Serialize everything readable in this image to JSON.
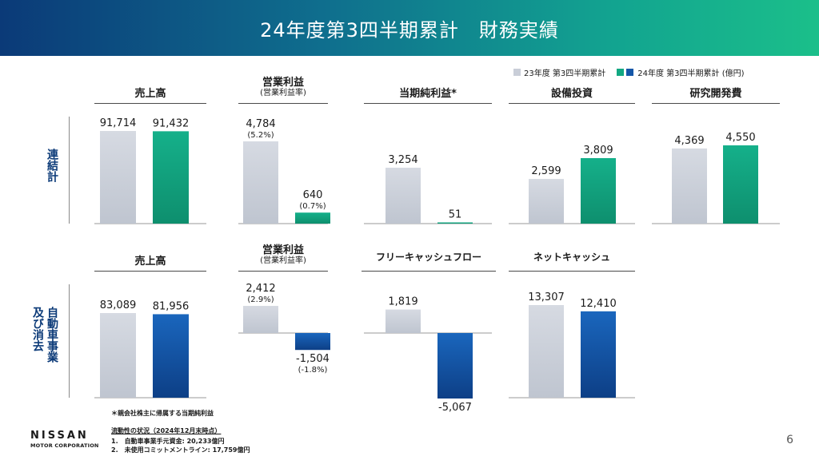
{
  "title": "24年度第3四半期累計　財務実績",
  "legend": [
    {
      "label": "23年度 第3四半期累計",
      "color": "#c9ced8"
    },
    {
      "label": "24年度 第3四半期累計 (億円)",
      "color_a": "#12a882",
      "color_b": "#1557a8"
    }
  ],
  "row_labels": {
    "consolidated": "連結計",
    "auto": "自動車事業\n及び消去"
  },
  "panel_titles": {
    "c_sales": {
      "title": "売上高",
      "sub": ""
    },
    "c_op": {
      "title": "営業利益",
      "sub": "(営業利益率)"
    },
    "c_net": {
      "title": "当期純利益*",
      "sub": ""
    },
    "c_capex": {
      "title": "設備投資",
      "sub": ""
    },
    "c_rd": {
      "title": "研究開発費",
      "sub": ""
    },
    "a_sales": {
      "title": "売上高",
      "sub": ""
    },
    "a_op": {
      "title": "営業利益",
      "sub": "(営業利益率)"
    },
    "a_fcf": {
      "title": "フリーキャッシュフロー",
      "sub": ""
    },
    "a_cash": {
      "title": "ネットキャッシュ",
      "sub": ""
    }
  },
  "chart_data": [
    {
      "id": "c_sales",
      "type": "bar",
      "categories": [
        "23年度 第3四半期累計",
        "24年度 第3四半期累計"
      ],
      "values": [
        91714,
        91432
      ],
      "labels": [
        "91,714",
        "91,432"
      ],
      "sub_labels": [
        "",
        ""
      ]
    },
    {
      "id": "c_op",
      "type": "bar",
      "categories": [
        "23年度 第3四半期累計",
        "24年度 第3四半期累計"
      ],
      "values": [
        4784,
        640
      ],
      "labels": [
        "4,784",
        "640"
      ],
      "sub_labels": [
        "(5.2%)",
        "(0.7%)"
      ]
    },
    {
      "id": "c_net",
      "type": "bar",
      "categories": [
        "23年度 第3四半期累計",
        "24年度 第3四半期累計"
      ],
      "values": [
        3254,
        51
      ],
      "labels": [
        "3,254",
        "51"
      ],
      "sub_labels": [
        "",
        ""
      ]
    },
    {
      "id": "c_capex",
      "type": "bar",
      "categories": [
        "23年度 第3四半期累計",
        "24年度 第3四半期累計"
      ],
      "values": [
        2599,
        3809
      ],
      "labels": [
        "2,599",
        "3,809"
      ],
      "sub_labels": [
        "",
        ""
      ]
    },
    {
      "id": "c_rd",
      "type": "bar",
      "categories": [
        "23年度 第3四半期累計",
        "24年度 第3四半期累計"
      ],
      "values": [
        4369,
        4550
      ],
      "labels": [
        "4,369",
        "4,550"
      ],
      "sub_labels": [
        "",
        ""
      ]
    },
    {
      "id": "a_sales",
      "type": "bar",
      "categories": [
        "23年度 第3四半期累計",
        "24年度 第3四半期累計"
      ],
      "values": [
        83089,
        81956
      ],
      "labels": [
        "83,089",
        "81,956"
      ],
      "sub_labels": [
        "",
        ""
      ]
    },
    {
      "id": "a_op",
      "type": "bar",
      "categories": [
        "23年度 第3四半期累計",
        "24年度 第3四半期累計"
      ],
      "values": [
        2412,
        -1504
      ],
      "labels": [
        "2,412",
        "-1,504"
      ],
      "sub_labels": [
        "(2.9%)",
        "(-1.8%)"
      ]
    },
    {
      "id": "a_fcf",
      "type": "bar",
      "categories": [
        "23年度 第3四半期累計",
        "24年度 第3四半期累計"
      ],
      "values": [
        1819,
        -5067
      ],
      "labels": [
        "1,819",
        "-5,067"
      ],
      "sub_labels": [
        "",
        ""
      ]
    },
    {
      "id": "a_cash",
      "type": "bar",
      "categories": [
        "23年度 第3四半期累計",
        "24年度 第3四半期累計"
      ],
      "values": [
        13307,
        12410
      ],
      "labels": [
        "13,307",
        "12,410"
      ],
      "sub_labels": [
        "",
        ""
      ]
    }
  ],
  "colors": {
    "prev": "#c9ced8",
    "cur_consolidated": "#12a882",
    "cur_auto": "#1557a8",
    "header_start": "#0b3a78",
    "header_end": "#1bbf8a"
  },
  "footnote": "＊親会社株主に帰属する当期純利益",
  "liquidity": {
    "title": "流動性の状況（2024年12月末時点）",
    "items": [
      "1.　自動車事業手元資金: 20,233億円",
      "2.　未使用コミットメントライン: 17,759億円"
    ]
  },
  "logo": {
    "main": "NISSAN",
    "sub": "MOTOR CORPORATION"
  },
  "page_number": "6"
}
